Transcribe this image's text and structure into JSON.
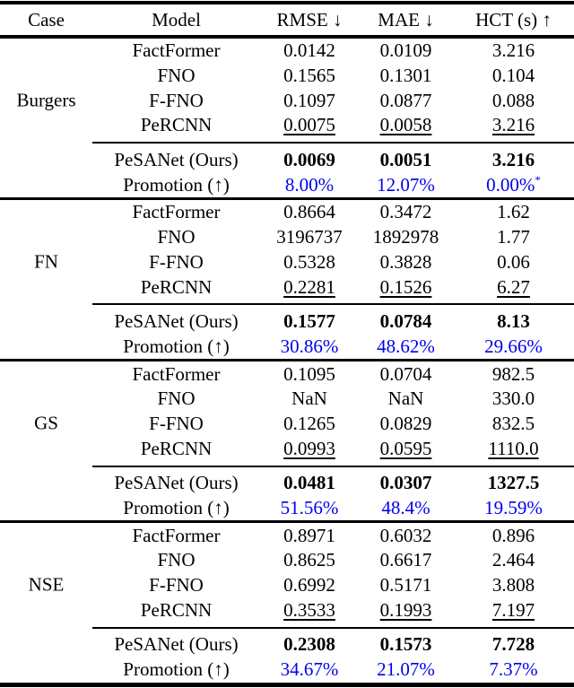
{
  "page": {
    "background_color": "#ffffff",
    "text_color": "#000000",
    "promotion_color": "#0000ee"
  },
  "table": {
    "header": {
      "case": "Case",
      "model": "Model",
      "rmse": "RMSE ↓",
      "mae": "MAE ↓",
      "hct": "HCT (s) ↑"
    },
    "sections": [
      {
        "case": "Burgers",
        "rows": [
          {
            "model": "FactFormer",
            "rmse": "0.0142",
            "mae": "0.0109",
            "hct": "3.216"
          },
          {
            "model": "FNO",
            "rmse": "0.1565",
            "mae": "0.1301",
            "hct": "0.104"
          },
          {
            "model": "F-FNO",
            "rmse": "0.1097",
            "mae": "0.0877",
            "hct": "0.088"
          },
          {
            "model": "PeRCNN",
            "rmse": "0.0075",
            "mae": "0.0058",
            "hct": "3.216"
          },
          {
            "model": "PeSANet (Ours)",
            "rmse": "0.0069",
            "mae": "0.0051",
            "hct": "3.216"
          },
          {
            "model": "Promotion (↑)",
            "rmse": "8.00%",
            "mae": "12.07%",
            "hct": "0.00%",
            "hct_sup": "*"
          }
        ]
      },
      {
        "case": "FN",
        "rows": [
          {
            "model": "FactFormer",
            "rmse": "0.8664",
            "mae": "0.3472",
            "hct": "1.62"
          },
          {
            "model": "FNO",
            "rmse": "3196737",
            "mae": "1892978",
            "hct": "1.77"
          },
          {
            "model": "F-FNO",
            "rmse": "0.5328",
            "mae": "0.3828",
            "hct": "0.06"
          },
          {
            "model": "PeRCNN",
            "rmse": "0.2281",
            "mae": "0.1526",
            "hct": "6.27"
          },
          {
            "model": "PeSANet (Ours)",
            "rmse": "0.1577",
            "mae": "0.0784",
            "hct": "8.13"
          },
          {
            "model": "Promotion (↑)",
            "rmse": "30.86%",
            "mae": "48.62%",
            "hct": "29.66%"
          }
        ]
      },
      {
        "case": "GS",
        "rows": [
          {
            "model": "FactFormer",
            "rmse": "0.1095",
            "mae": "0.0704",
            "hct": "982.5"
          },
          {
            "model": "FNO",
            "rmse": "NaN",
            "mae": "NaN",
            "hct": "330.0"
          },
          {
            "model": "F-FNO",
            "rmse": "0.1265",
            "mae": "0.0829",
            "hct": "832.5"
          },
          {
            "model": "PeRCNN",
            "rmse": "0.0993",
            "mae": "0.0595",
            "hct": "1110.0"
          },
          {
            "model": "PeSANet (Ours)",
            "rmse": "0.0481",
            "mae": "0.0307",
            "hct": "1327.5"
          },
          {
            "model": "Promotion (↑)",
            "rmse": "51.56%",
            "mae": "48.4%",
            "hct": "19.59%"
          }
        ]
      },
      {
        "case": "NSE",
        "rows": [
          {
            "model": "FactFormer",
            "rmse": "0.8971",
            "mae": "0.6032",
            "hct": "0.896"
          },
          {
            "model": "FNO",
            "rmse": "0.8625",
            "mae": "0.6617",
            "hct": "2.464"
          },
          {
            "model": "F-FNO",
            "rmse": "0.6992",
            "mae": "0.5171",
            "hct": "3.808"
          },
          {
            "model": "PeRCNN",
            "rmse": "0.3533",
            "mae": "0.1993",
            "hct": "7.197"
          },
          {
            "model": "PeSANet (Ours)",
            "rmse": "0.2308",
            "mae": "0.1573",
            "hct": "7.728"
          },
          {
            "model": "Promotion (↑)",
            "rmse": "34.67%",
            "mae": "21.07%",
            "hct": "7.37%"
          }
        ]
      }
    ]
  }
}
